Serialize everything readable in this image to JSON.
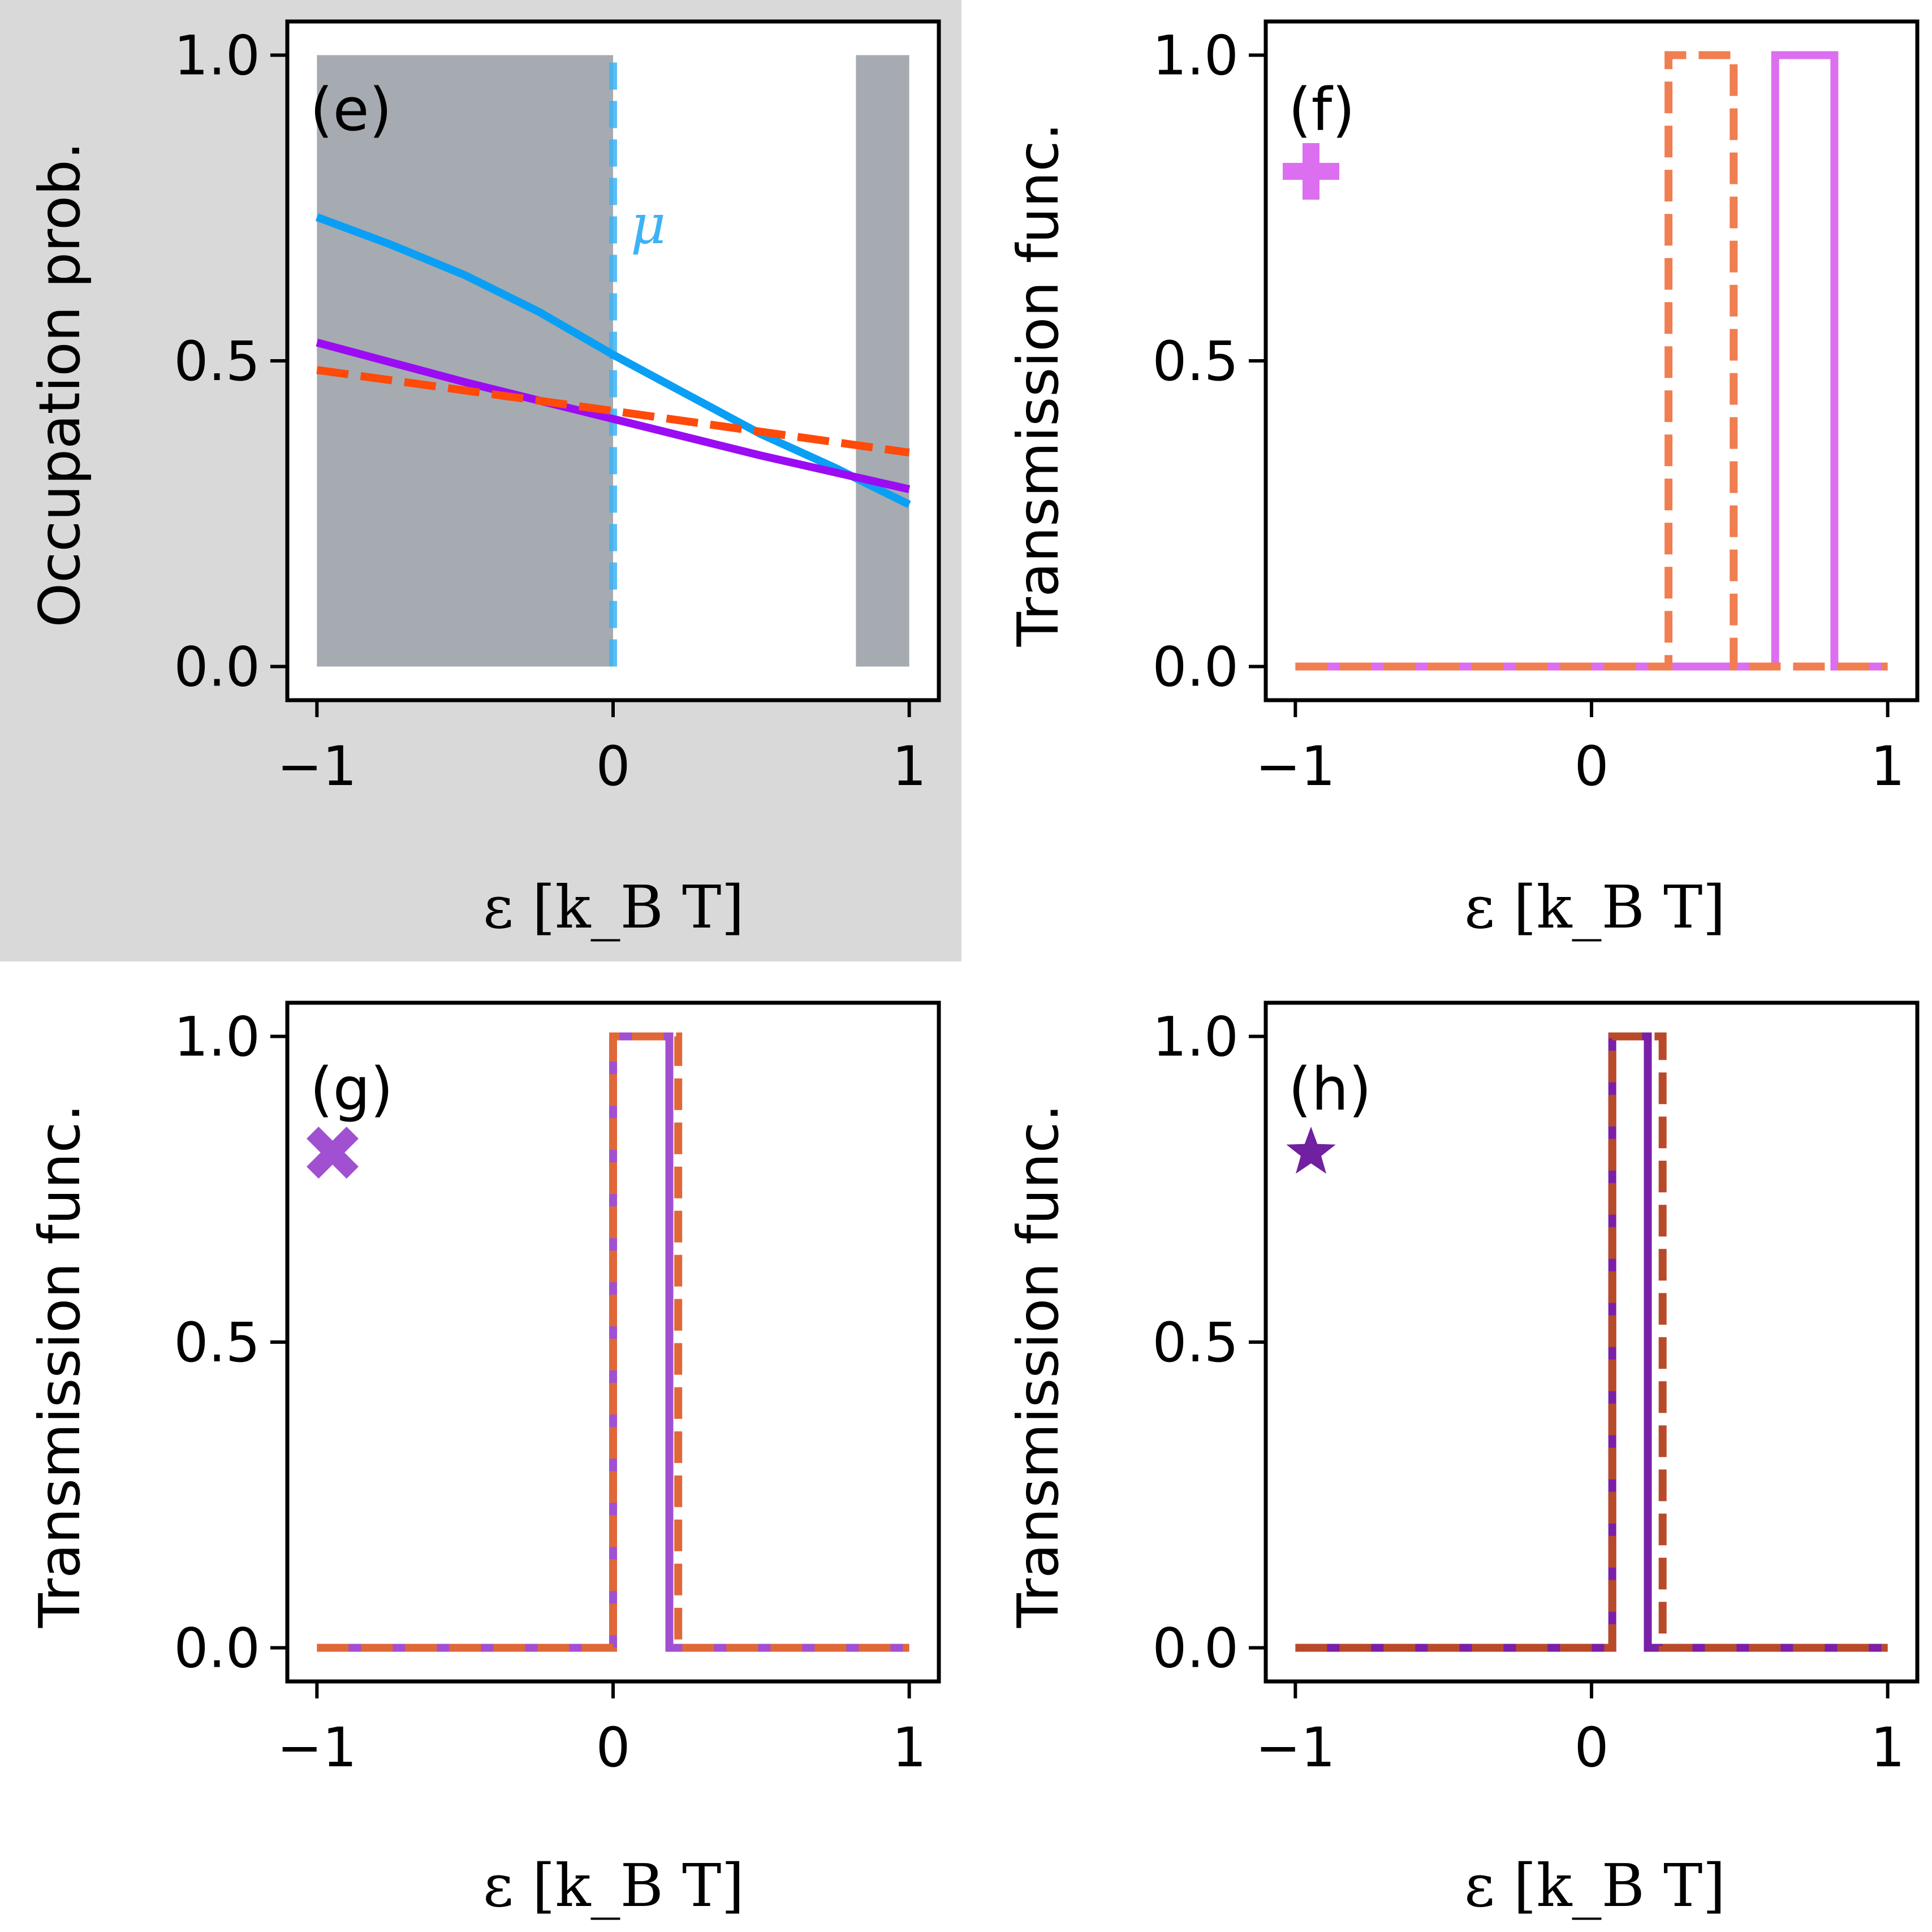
{
  "chart_data": [
    {
      "panel": "(e)",
      "type": "line",
      "background": "#d9d9d9",
      "xlabel": "ε [k_B T]",
      "ylabel": "Occupation prob.",
      "xlim": [
        -1.1,
        1.1
      ],
      "ylim": [
        -0.055,
        1.055
      ],
      "xticks": [
        -1,
        0,
        1
      ],
      "xtick_labels": [
        "−1",
        "0",
        "1"
      ],
      "yticks": [
        0.0,
        0.5,
        1.0
      ],
      "ytick_labels": [
        "0.0",
        "0.5",
        "1.0"
      ],
      "shaded_regions": [
        {
          "x": [
            -1.0,
            0.0
          ],
          "y": [
            0.0,
            1.0
          ],
          "color": "#a6abb1"
        },
        {
          "x": [
            0.82,
            1.0
          ],
          "y": [
            0.0,
            1.0
          ],
          "color": "#a6abb1"
        }
      ],
      "vlines": [
        {
          "name": "mu-line",
          "x": 0.0,
          "y": [
            0.0,
            1.0
          ],
          "color": "#3db3f5",
          "style": "dashed",
          "label": "μ"
        }
      ],
      "series": [
        {
          "name": "blue-curve",
          "color": "#0a9ff5",
          "style": "solid",
          "x": [
            -1.0,
            -0.75,
            -0.5,
            -0.25,
            0.0,
            0.25,
            0.5,
            0.75,
            1.0
          ],
          "y": [
            0.735,
            0.69,
            0.64,
            0.58,
            0.51,
            0.445,
            0.38,
            0.325,
            0.265
          ]
        },
        {
          "name": "purple-curve",
          "color": "#9b0cf3",
          "style": "solid",
          "x": [
            -1.0,
            -0.5,
            0.0,
            0.5,
            1.0
          ],
          "y": [
            0.53,
            0.465,
            0.405,
            0.345,
            0.29
          ]
        },
        {
          "name": "orange-dashed-curve",
          "color": "#ff4a0a",
          "style": "dashed",
          "x": [
            -1.0,
            0.0,
            1.0
          ],
          "y": [
            0.485,
            0.418,
            0.35
          ]
        }
      ]
    },
    {
      "panel": "(f)",
      "type": "line",
      "marker": {
        "shape": "plus",
        "color": "#dc6ef0"
      },
      "xlabel": "ε [k_B T]",
      "ylabel": "Transmission func.",
      "xlim": [
        -1.1,
        1.1
      ],
      "ylim": [
        -0.055,
        1.055
      ],
      "xticks": [
        -1,
        0,
        1
      ],
      "xtick_labels": [
        "−1",
        "0",
        "1"
      ],
      "yticks": [
        0.0,
        0.5,
        1.0
      ],
      "ytick_labels": [
        "0.0",
        "0.5",
        "1.0"
      ],
      "series": [
        {
          "name": "solid-transmission",
          "color": "#dc6ef0",
          "style": "solid",
          "x": [
            -1.0,
            0.62,
            0.62,
            0.82,
            0.82,
            1.0
          ],
          "y": [
            0,
            0,
            1,
            1,
            0,
            0
          ]
        },
        {
          "name": "dashed-transmission",
          "color": "#f07e50",
          "style": "dashed",
          "x": [
            -1.0,
            0.26,
            0.26,
            0.48,
            0.48,
            1.0
          ],
          "y": [
            0,
            0,
            1,
            1,
            0,
            0
          ]
        }
      ]
    },
    {
      "panel": "(g)",
      "type": "line",
      "marker": {
        "shape": "cross",
        "color": "#a050d0"
      },
      "xlabel": "ε [k_B T]",
      "ylabel": "Transmission func.",
      "xlim": [
        -1.1,
        1.1
      ],
      "ylim": [
        -0.055,
        1.055
      ],
      "xticks": [
        -1,
        0,
        1
      ],
      "xtick_labels": [
        "−1",
        "0",
        "1"
      ],
      "yticks": [
        0.0,
        0.5,
        1.0
      ],
      "ytick_labels": [
        "0.0",
        "0.5",
        "1.0"
      ],
      "series": [
        {
          "name": "solid-transmission",
          "color": "#a050d0",
          "style": "solid",
          "x": [
            -1.0,
            0.0,
            0.0,
            0.19,
            0.19,
            1.0
          ],
          "y": [
            0,
            0,
            1,
            1,
            0,
            0
          ]
        },
        {
          "name": "dashed-transmission",
          "color": "#e06838",
          "style": "dashed",
          "x": [
            -1.0,
            0.0,
            0.0,
            0.22,
            0.22,
            1.0
          ],
          "y": [
            0,
            0,
            1,
            1,
            0,
            0
          ]
        }
      ]
    },
    {
      "panel": "(h)",
      "type": "line",
      "marker": {
        "shape": "star",
        "color": "#7020a0"
      },
      "xlabel": "ε [k_B T]",
      "ylabel": "Transmission func.",
      "xlim": [
        -1.1,
        1.1
      ],
      "ylim": [
        -0.055,
        1.055
      ],
      "xticks": [
        -1,
        0,
        1
      ],
      "xtick_labels": [
        "−1",
        "0",
        "1"
      ],
      "yticks": [
        0.0,
        0.5,
        1.0
      ],
      "ytick_labels": [
        "0.0",
        "0.5",
        "1.0"
      ],
      "series": [
        {
          "name": "solid-transmission",
          "color": "#7a1fa8",
          "style": "solid",
          "x": [
            -1.0,
            0.07,
            0.07,
            0.19,
            0.19,
            1.0
          ],
          "y": [
            0,
            0,
            1,
            1,
            0,
            0
          ]
        },
        {
          "name": "dashed-transmission",
          "color": "#b84a2a",
          "style": "dashed",
          "x": [
            -1.0,
            0.07,
            0.07,
            0.24,
            0.24,
            1.0
          ],
          "y": [
            0,
            0,
            1,
            1,
            0,
            0
          ]
        }
      ]
    }
  ]
}
